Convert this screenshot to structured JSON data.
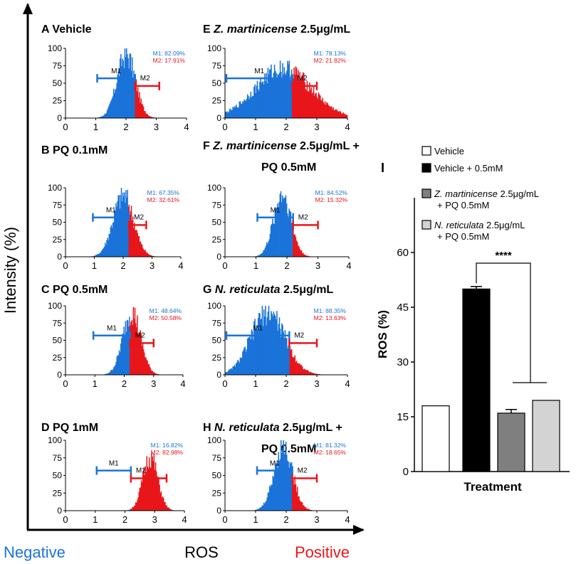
{
  "figure": {
    "y_label": "Intensity (%)",
    "x_label": "ROS",
    "negative_label": "Negative",
    "positive_label": "Positive",
    "colors": {
      "negative": "#1a73d9",
      "positive": "#e8161b",
      "axis": "#000000"
    }
  },
  "chart_data": [
    {
      "type": "histogram",
      "panel": "A",
      "title": "Vehicle",
      "title_italic": "",
      "title_line2": "",
      "xticks": [
        "0",
        "1",
        "2",
        "3",
        "4"
      ],
      "yticks": [
        "0",
        "25",
        "50",
        "75",
        "100"
      ],
      "xlim": [
        0,
        4
      ],
      "ylim": [
        0,
        100
      ],
      "split": 2.3,
      "m1_label": "M1",
      "m2_label": "M2",
      "m1_range": [
        1.0,
        2.3
      ],
      "m2_range": [
        2.3,
        3.1
      ],
      "m1_pct": "M1: 82.09%",
      "m2_pct": "M2: 17.91%",
      "peak_x": 2.0,
      "peak_height": 100,
      "spread": 0.3
    },
    {
      "type": "histogram",
      "panel": "B",
      "title": "PQ  0.1mM",
      "title_italic": "",
      "title_line2": "",
      "xticks": [
        "0",
        "1",
        "2",
        "3",
        "4"
      ],
      "yticks": [
        "0",
        "25",
        "50",
        "75",
        "100"
      ],
      "xlim": [
        0,
        4
      ],
      "ylim": [
        0,
        100
      ],
      "split": 2.2,
      "m1_label": "M1",
      "m2_label": "M2",
      "m1_range": [
        0.9,
        2.2
      ],
      "m2_range": [
        2.2,
        2.8
      ],
      "m1_pct": "M1: 67.35%",
      "m2_pct": "M2: 32.61%",
      "peak_x": 2.0,
      "peak_height": 98,
      "spread": 0.35
    },
    {
      "type": "histogram",
      "panel": "C",
      "title": "PQ 0.5mM",
      "title_italic": "",
      "title_line2": "",
      "xticks": [
        "0",
        "1",
        "2",
        "3",
        "4"
      ],
      "yticks": [
        "0",
        "25",
        "50",
        "75",
        "100"
      ],
      "xlim": [
        0,
        4
      ],
      "ylim": [
        0,
        100
      ],
      "split": 2.2,
      "m1_label": "M1",
      "m2_label": "M2",
      "m1_range": [
        0.9,
        2.2
      ],
      "m2_range": [
        2.2,
        3.0
      ],
      "m1_pct": "M1: 48.64%",
      "m2_pct": "M2: 50.58%",
      "peak_x": 2.25,
      "peak_height": 100,
      "spread": 0.3
    },
    {
      "type": "histogram",
      "panel": "D",
      "title": "PQ 1mM",
      "title_italic": "",
      "title_line2": "",
      "xticks": [
        "0",
        "1",
        "2",
        "3",
        "4"
      ],
      "yticks": [
        "0",
        "25",
        "50",
        "75",
        "100"
      ],
      "xlim": [
        0,
        4
      ],
      "ylim": [
        0,
        100
      ],
      "split": 2.2,
      "m1_label": "M1",
      "m2_label": "M2",
      "m1_range": [
        1.0,
        2.2
      ],
      "m2_range": [
        2.2,
        3.4
      ],
      "m1_pct": "M1: 16.82%",
      "m2_pct": "M2: 82.98%",
      "peak_x": 2.85,
      "peak_height": 84,
      "spread": 0.25
    },
    {
      "type": "histogram",
      "panel": "E",
      "title": "",
      "title_italic": "Z. martinicense",
      "title_tail": " 2.5μg/mL",
      "title_line2": "",
      "xticks": [
        "0",
        "1",
        "2",
        "3",
        "4"
      ],
      "yticks": [
        "0",
        "25",
        "50",
        "75",
        "100"
      ],
      "xlim": [
        0,
        4
      ],
      "ylim": [
        0,
        100
      ],
      "split": 2.2,
      "m1_label": "M1",
      "m2_label": "M2",
      "m1_range": [
        0.0,
        2.2
      ],
      "m2_range": [
        2.2,
        3.0
      ],
      "m1_pct": "M1: 78.13%",
      "m2_pct": "M2: 21.82%",
      "peak_x": 1.9,
      "peak_height": 78,
      "spread": 0.9
    },
    {
      "type": "histogram",
      "panel": "F",
      "title": "",
      "title_italic": "Z. martinicense",
      "title_tail": " 2.5μg/mL +",
      "title_line2": "PQ 0.5mM",
      "xticks": [
        "0",
        "1",
        "2",
        "3",
        "4"
      ],
      "yticks": [
        "0",
        "25",
        "50",
        "75",
        "100"
      ],
      "xlim": [
        0,
        4
      ],
      "ylim": [
        0,
        100
      ],
      "split": 2.2,
      "m1_label": "M1",
      "m2_label": "M2",
      "m1_range": [
        1.0,
        2.2
      ],
      "m2_range": [
        2.2,
        3.0
      ],
      "m1_pct": "M1: 84.52%",
      "m2_pct": "M2: 15.32%",
      "peak_x": 1.85,
      "peak_height": 100,
      "spread": 0.28
    },
    {
      "type": "histogram",
      "panel": "G",
      "title": "",
      "title_italic": "N. reticulata",
      "title_tail": " 2.5μg/mL",
      "title_line2": "",
      "xticks": [
        "0",
        "1",
        "2",
        "3",
        "4"
      ],
      "yticks": [
        "0",
        "25",
        "50",
        "75",
        "100"
      ],
      "xlim": [
        0,
        4
      ],
      "ylim": [
        0,
        100
      ],
      "split": 2.1,
      "m1_label": "M1",
      "m2_label": "M2",
      "m1_range": [
        0.0,
        2.1
      ],
      "m2_range": [
        2.1,
        3.0
      ],
      "m1_pct": "M1: 88.35%",
      "m2_pct": "M2: 13.63%",
      "peak_x": 1.4,
      "peak_height": 100,
      "spread": 0.55
    },
    {
      "type": "histogram",
      "panel": "H",
      "title": "",
      "title_italic": "N. reticulata",
      "title_tail": " 2.5μg/mL +",
      "title_line2": "PQ 0.5mM",
      "xticks": [
        "0",
        "1",
        "2",
        "3",
        "4"
      ],
      "yticks": [
        "0",
        "25",
        "50",
        "75",
        "100"
      ],
      "xlim": [
        0,
        4
      ],
      "ylim": [
        0,
        100
      ],
      "split": 2.2,
      "m1_label": "M1",
      "m2_label": "M2",
      "m1_range": [
        1.0,
        2.2
      ],
      "m2_range": [
        2.2,
        3.0
      ],
      "m1_pct": "M1: 81.32%",
      "m2_pct": "M2: 18.65%",
      "peak_x": 1.9,
      "peak_height": 100,
      "spread": 0.3
    },
    {
      "type": "bar",
      "panel": "I",
      "ylabel": "ROS (%)",
      "xlabel": "Treatment",
      "ylim": [
        0,
        75
      ],
      "yticks": [
        "0",
        "15",
        "30",
        "45",
        "60"
      ],
      "categories": [
        "Vehicle",
        "Vehicle + 0.5mM",
        "Z. martinicense 2.5μg/mL + PQ 0.5mM",
        "N. reticulata 2.5μg/mL + PQ 0.5mM"
      ],
      "values": [
        18,
        50,
        16,
        19.5
      ],
      "errors": [
        0,
        0.7,
        1.0,
        0
      ],
      "colors": [
        "#ffffff",
        "#000000",
        "#7f7f7f",
        "#d3d3d3"
      ],
      "significance": "****",
      "legend": [
        {
          "italic": "",
          "text": "Vehicle",
          "line2": ""
        },
        {
          "italic": "",
          "text": "Vehicle + 0.5mM",
          "line2": ""
        },
        {
          "italic": "Z. martinicense",
          "text": " 2.5μg/mL",
          "line2": "+ PQ 0.5mM"
        },
        {
          "italic": "N. reticulata",
          "text": " 2.5μg/mL",
          "line2": "+ PQ 0.5mM"
        }
      ]
    }
  ]
}
